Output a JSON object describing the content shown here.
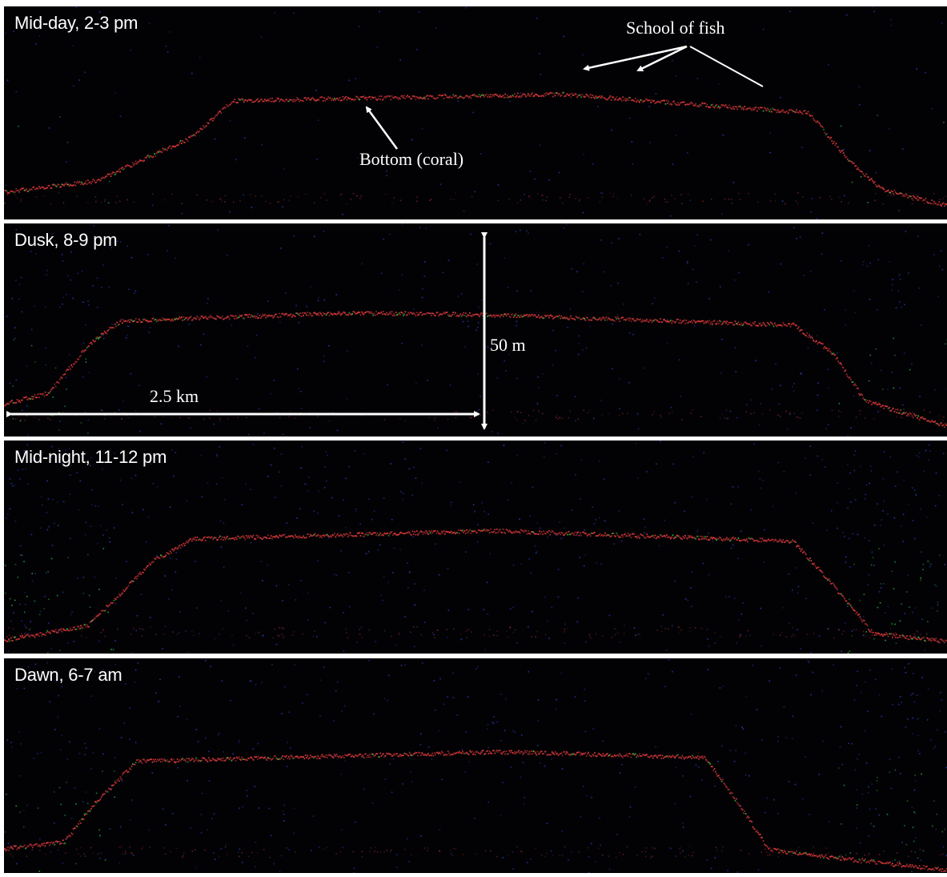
{
  "panels": [
    {
      "title": "Mid-day, 2-3 pm"
    },
    {
      "title": "Dusk, 8-9 pm"
    },
    {
      "title": "Mid-night, 11-12 pm"
    },
    {
      "title": "Dawn, 6-7 am"
    }
  ],
  "annotations": {
    "school_of_fish": "School of fish",
    "bottom": "Bottom (coral)",
    "depth_scale": "50 m",
    "distance_scale": "2.5 km"
  },
  "colors": {
    "bottom_echo": "#e03a3a",
    "fish_echo_green": "#2fbf3a",
    "fish_echo_blue": "#2a3fbf",
    "background": "#020205",
    "annotation": "#ffffff"
  }
}
